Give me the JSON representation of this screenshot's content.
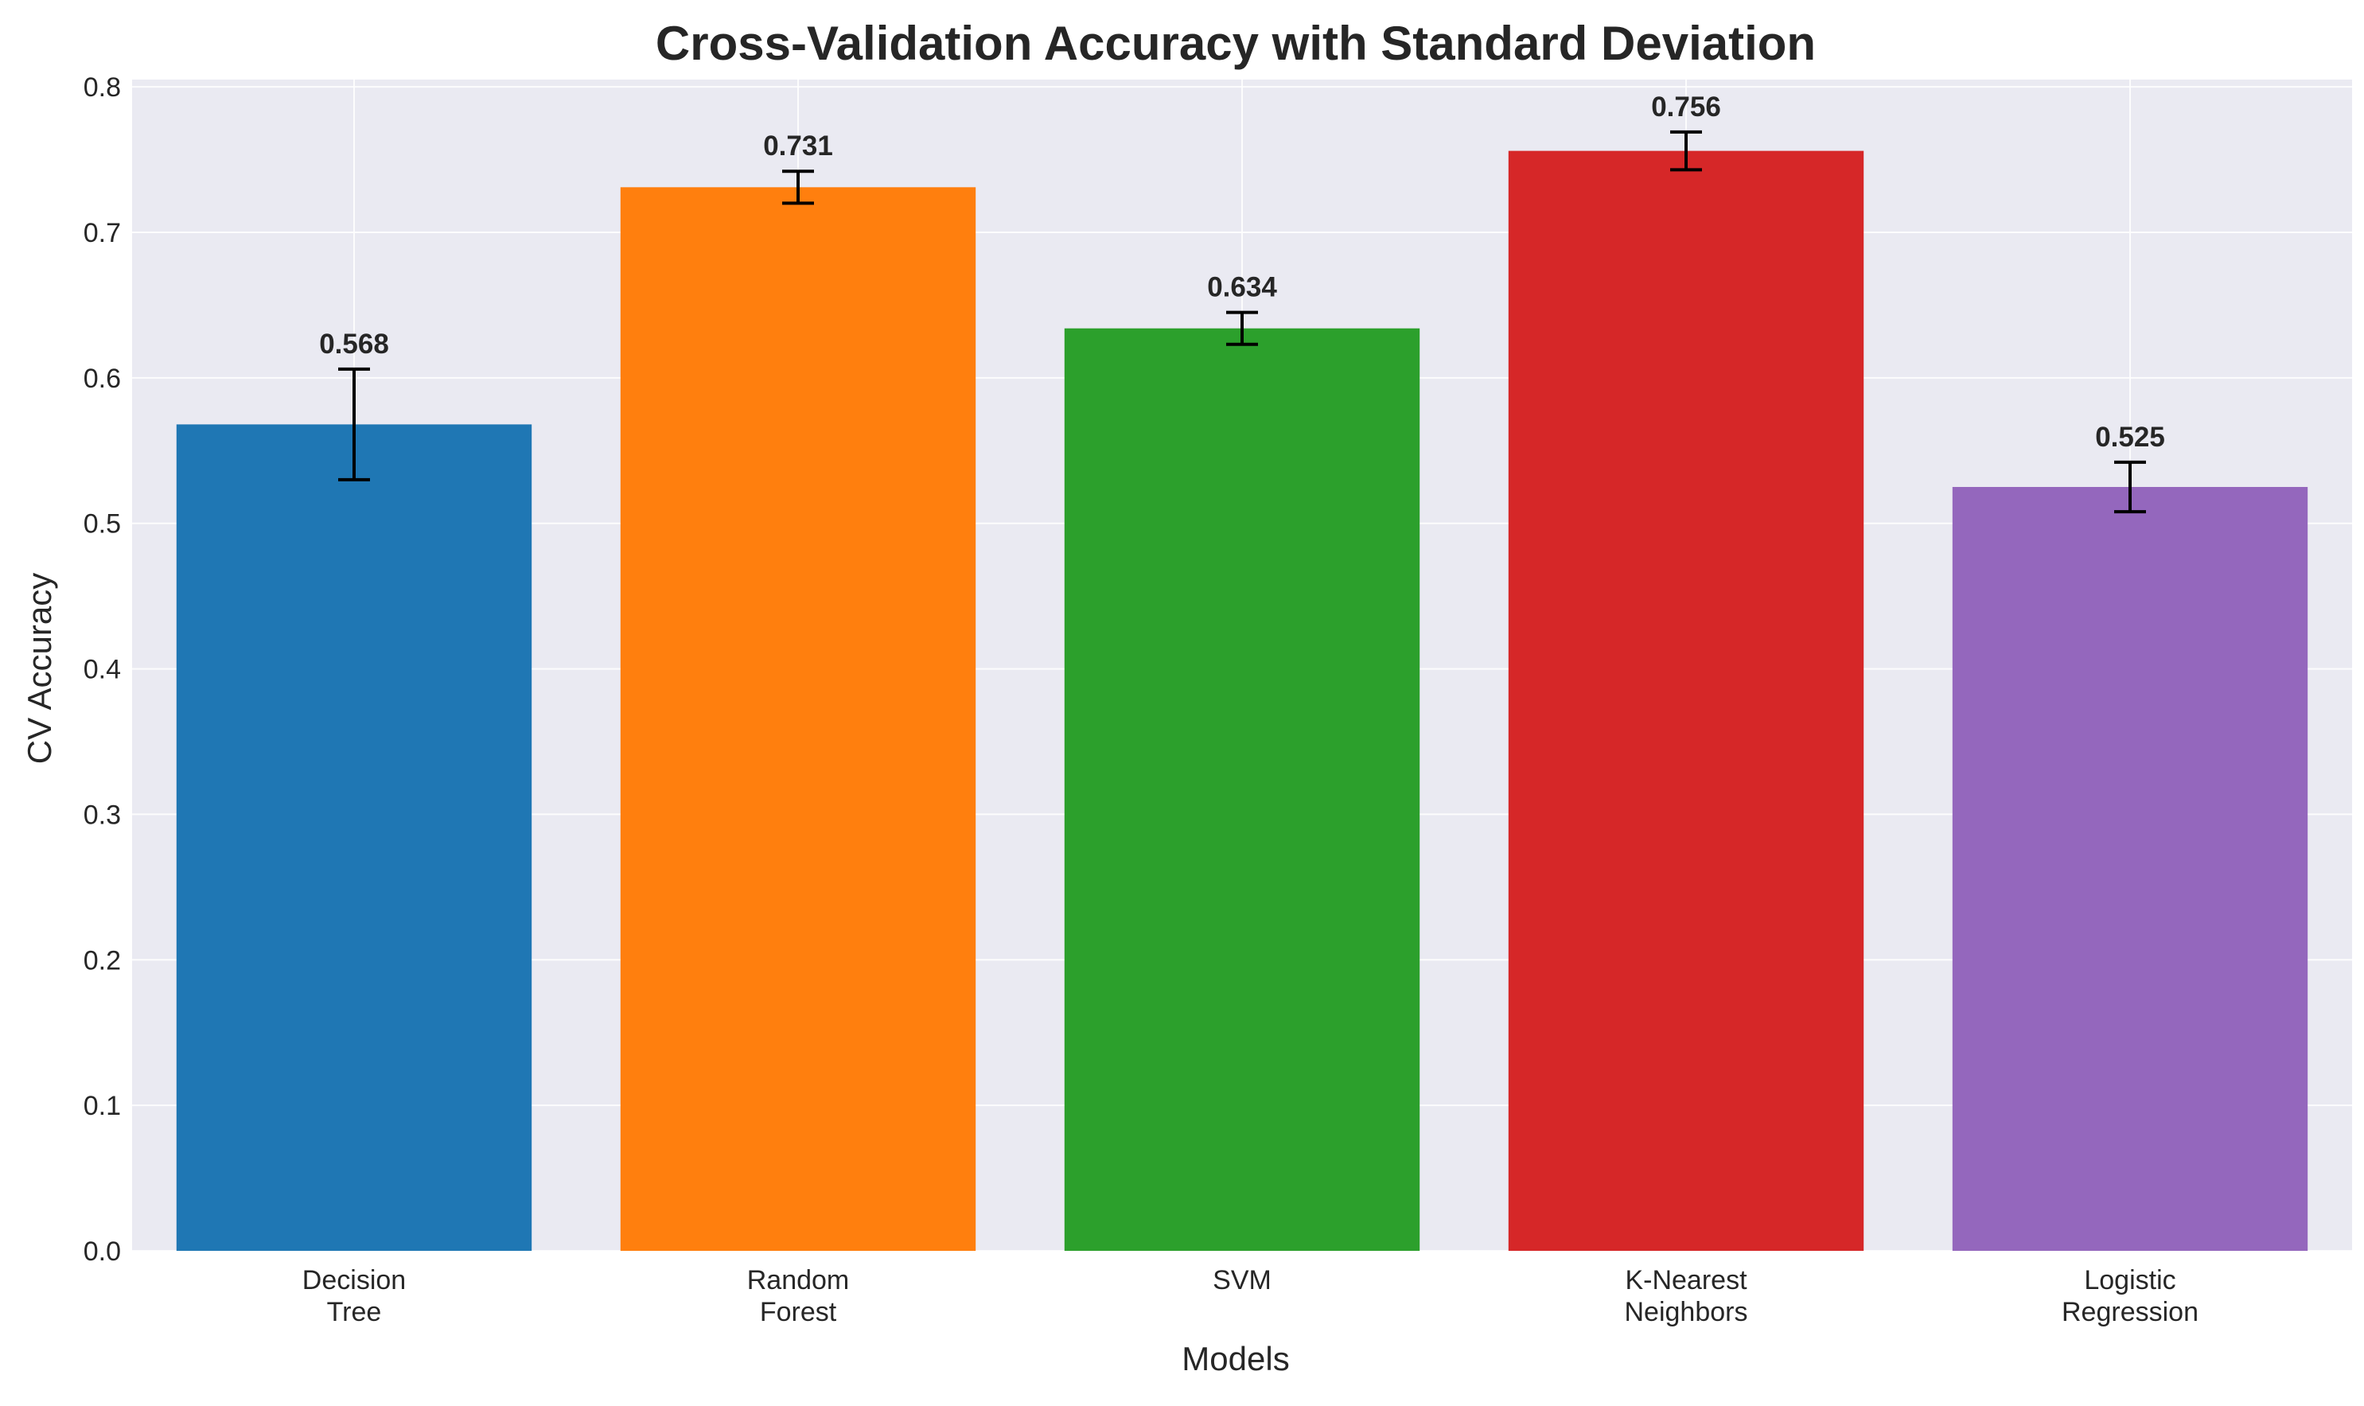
{
  "chart_data": {
    "type": "bar",
    "title": "Cross-Validation Accuracy with Standard Deviation",
    "xlabel": "Models",
    "ylabel": "CV Accuracy",
    "categories": [
      [
        "Decision",
        "Tree"
      ],
      [
        "Random",
        "Forest"
      ],
      [
        "SVM"
      ],
      [
        "K-Nearest",
        "Neighbors"
      ],
      [
        "Logistic",
        "Regression"
      ]
    ],
    "values": [
      0.568,
      0.731,
      0.634,
      0.756,
      0.525
    ],
    "value_labels": [
      "0.568",
      "0.731",
      "0.634",
      "0.756",
      "0.525"
    ],
    "std": [
      0.038,
      0.011,
      0.011,
      0.013,
      0.017
    ],
    "colors": [
      "#1f77b4",
      "#ff7f0e",
      "#2ca02c",
      "#d62728",
      "#9467bd"
    ],
    "ylim": [
      0,
      0.805
    ],
    "yticks": [
      0.0,
      0.1,
      0.2,
      0.3,
      0.4,
      0.5,
      0.6,
      0.7,
      0.8
    ],
    "ytick_labels": [
      "0.0",
      "0.1",
      "0.2",
      "0.3",
      "0.4",
      "0.5",
      "0.6",
      "0.7",
      "0.8"
    ],
    "grid": true,
    "plot_background": "#eaeaf2",
    "error_bar_color": "#000000"
  }
}
